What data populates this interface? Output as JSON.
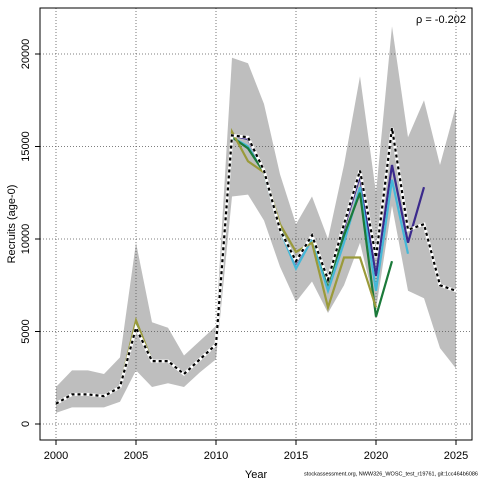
{
  "chart_data": {
    "type": "line",
    "ylabel": "Recruits (age-0)",
    "xlabel": "Year",
    "annotation": "ρ = -0.202",
    "footer": "stockassessment.org, NWW326_WOSC_test_r19761, git:1cc464b6086",
    "x": [
      2000,
      2001,
      2002,
      2003,
      2004,
      2005,
      2006,
      2007,
      2008,
      2009,
      2010,
      2011,
      2012,
      2013,
      2014,
      2015,
      2016,
      2017,
      2018,
      2019,
      2020,
      2021,
      2022,
      2023,
      2024,
      2025
    ],
    "band": {
      "color": "#bebebe",
      "upper": [
        2000,
        2900,
        2900,
        2700,
        3600,
        9800,
        5500,
        5200,
        3700,
        4500,
        5300,
        19800,
        19500,
        17300,
        13500,
        10800,
        12300,
        10000,
        14000,
        18800,
        12500,
        21500,
        15500,
        17500,
        14000,
        17200
      ],
      "lower": [
        600,
        900,
        900,
        900,
        1200,
        2900,
        2000,
        2200,
        2000,
        2800,
        3500,
        12300,
        12400,
        11000,
        8500,
        6600,
        7700,
        6000,
        7500,
        9800,
        6200,
        11800,
        7200,
        6800,
        4100,
        3000
      ]
    },
    "series": [
      {
        "color": "#3b2a8c",
        "values": [
          1100,
          1600,
          1600,
          1500,
          2000,
          5300,
          3400,
          3400,
          2700,
          3500,
          4300,
          15600,
          15400,
          13700,
          10500,
          8700,
          10200,
          7800,
          10600,
          13400,
          8000,
          14000,
          9800,
          12800,
          null,
          null
        ]
      },
      {
        "color": "#44b8d8",
        "values": [
          1100,
          1600,
          1600,
          1500,
          2000,
          5400,
          3400,
          3400,
          2700,
          3500,
          4300,
          15500,
          15000,
          13600,
          10500,
          8400,
          10000,
          7200,
          9800,
          12800,
          7200,
          13200,
          9200,
          null,
          null,
          null
        ]
      },
      {
        "color": "#1b7a3a",
        "values": [
          1100,
          1600,
          1600,
          1500,
          2000,
          5500,
          3400,
          3400,
          2700,
          3500,
          4300,
          15500,
          14900,
          13600,
          10600,
          8800,
          10200,
          7600,
          10200,
          12500,
          5800,
          8800,
          null,
          null,
          null,
          null
        ]
      },
      {
        "color": "#9a9a3a",
        "values": [
          1100,
          1600,
          1600,
          1500,
          2000,
          5600,
          3400,
          3400,
          2700,
          3500,
          4300,
          15800,
          14200,
          13600,
          10800,
          9300,
          9800,
          6300,
          9000,
          9000,
          6300,
          null,
          null,
          null,
          null,
          null
        ]
      },
      {
        "color": "#000000",
        "dashed": true,
        "values": [
          1100,
          1600,
          1600,
          1500,
          2000,
          5200,
          3400,
          3400,
          2700,
          3500,
          4300,
          15600,
          15500,
          13700,
          10500,
          8800,
          10200,
          7800,
          10800,
          13700,
          9000,
          16000,
          10500,
          10800,
          7500,
          7200
        ]
      }
    ],
    "xlim": [
      1999,
      2026
    ],
    "ylim": [
      -865,
      22486
    ],
    "xticks": [
      2000,
      2005,
      2010,
      2015,
      2020,
      2025
    ],
    "yticks": [
      0,
      5000,
      10000,
      15000,
      20000
    ],
    "grid": true
  }
}
